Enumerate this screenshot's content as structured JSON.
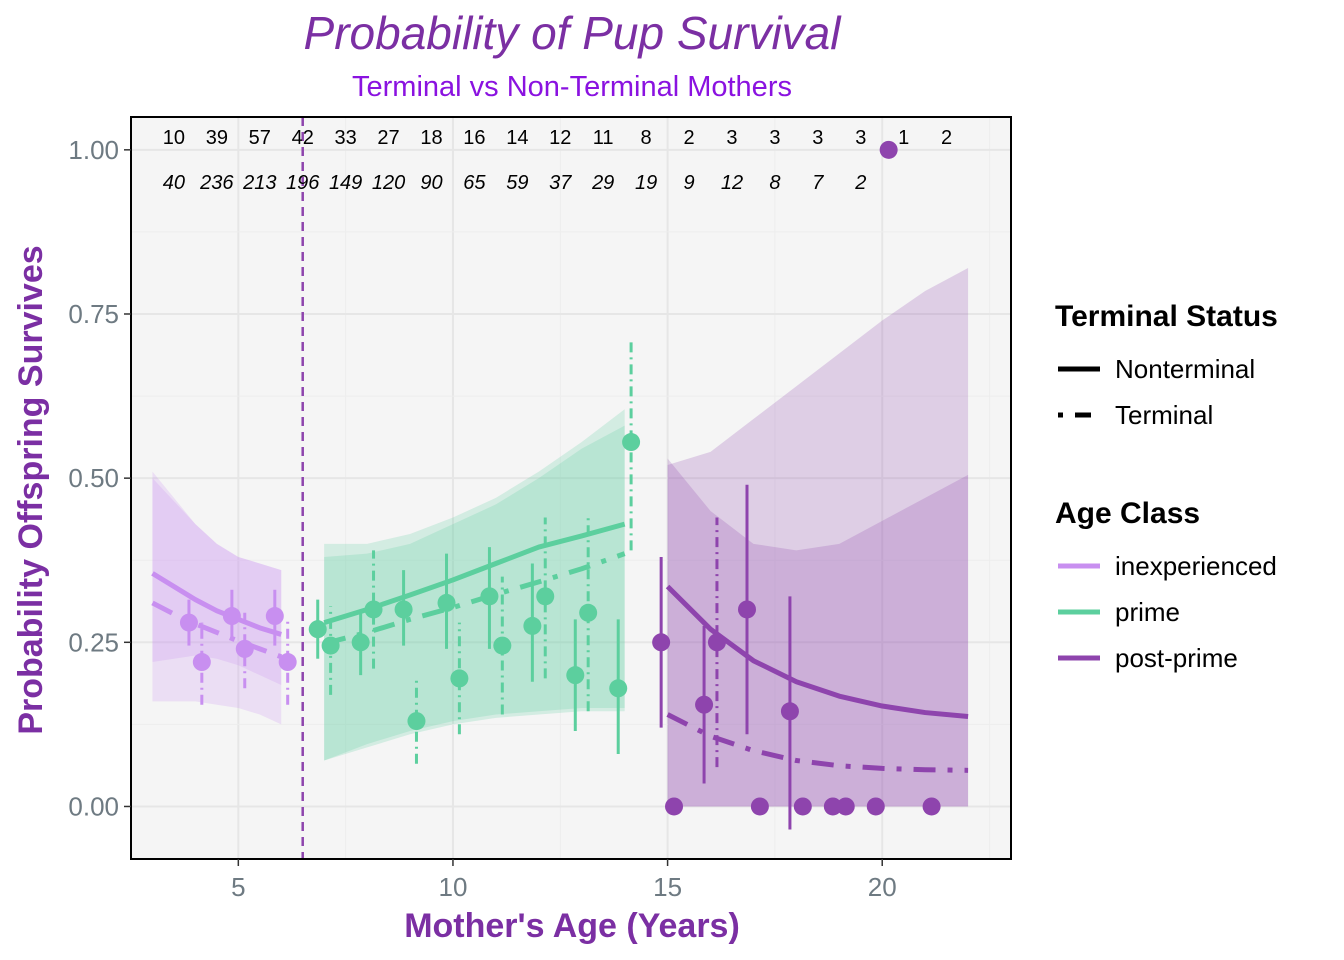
{
  "chart_data": {
    "type": "scatter",
    "title": "Probability of Pup Survival",
    "subtitle": "Terminal vs Non-Terminal Mothers",
    "xlabel": "Mother's Age (Years)",
    "ylabel": "Probability Offspring Survives",
    "xlim": [
      2.5,
      23.0
    ],
    "ylim": [
      -0.08,
      1.05
    ],
    "xticks": [
      5,
      10,
      15,
      20
    ],
    "xtick_labels": [
      "5",
      "10",
      "15",
      "20"
    ],
    "yticks": [
      0.0,
      0.25,
      0.5,
      0.75,
      1.0
    ],
    "ytick_labels": [
      "0.00",
      "0.25",
      "0.50",
      "0.75",
      "1.00"
    ],
    "grid": true,
    "vline": {
      "x": 6.5,
      "color": "#8e44ad",
      "style": "dashed"
    },
    "colors": {
      "inexperienced": "#c88ff0",
      "prime": "#5ccf9e",
      "post-prime": "#8e44ad"
    },
    "counts": {
      "x": [
        3.5,
        4.5,
        5.5,
        6.5,
        7.5,
        8.5,
        9.5,
        10.5,
        11.5,
        12.5,
        13.5,
        14.5,
        15.5,
        16.5,
        17.5,
        18.5,
        19.5,
        20.5,
        21.5
      ],
      "nonterminal": [
        "10",
        "39",
        "57",
        "42",
        "33",
        "27",
        "18",
        "16",
        "14",
        "12",
        "11",
        "8",
        "2",
        "3",
        "3",
        "3",
        "3",
        "1",
        "2"
      ],
      "terminal": [
        "40",
        "236",
        "213",
        "196",
        "149",
        "120",
        "90",
        "65",
        "59",
        "37",
        "29",
        "19",
        "9",
        "12",
        "8",
        "7",
        "2",
        "",
        ""
      ]
    },
    "series": [
      {
        "class": "inexperienced",
        "status": "Nonterminal",
        "points": [
          {
            "x": 3.85,
            "y": 0.28,
            "lo": 0.245,
            "hi": 0.315
          },
          {
            "x": 4.85,
            "y": 0.29,
            "lo": 0.255,
            "hi": 0.33
          },
          {
            "x": 5.85,
            "y": 0.29,
            "lo": 0.245,
            "hi": 0.33
          }
        ],
        "fit": {
          "x": [
            3,
            3.5,
            4,
            4.5,
            5,
            5.5,
            6
          ],
          "y": [
            0.355,
            0.335,
            0.315,
            0.298,
            0.285,
            0.272,
            0.262
          ]
        },
        "band": {
          "x": [
            3,
            3.5,
            4,
            4.5,
            5,
            5.5,
            6
          ],
          "lo": [
            0.22,
            0.225,
            0.23,
            0.225,
            0.215,
            0.2,
            0.185
          ],
          "hi": [
            0.5,
            0.465,
            0.43,
            0.4,
            0.38,
            0.37,
            0.36
          ]
        }
      },
      {
        "class": "inexperienced",
        "status": "Terminal",
        "points": [
          {
            "x": 4.15,
            "y": 0.22,
            "lo": 0.155,
            "hi": 0.28
          },
          {
            "x": 5.15,
            "y": 0.24,
            "lo": 0.18,
            "hi": 0.295
          },
          {
            "x": 6.15,
            "y": 0.22,
            "lo": 0.155,
            "hi": 0.285
          }
        ],
        "fit": {
          "x": [
            3,
            3.5,
            4,
            4.5,
            5,
            5.5,
            6
          ],
          "y": [
            0.31,
            0.293,
            0.278,
            0.265,
            0.252,
            0.24,
            0.228
          ]
        },
        "band": {
          "x": [
            3,
            3.5,
            4,
            4.5,
            5,
            5.5,
            6
          ],
          "lo": [
            0.16,
            0.16,
            0.16,
            0.155,
            0.15,
            0.14,
            0.125
          ],
          "hi": [
            0.51,
            0.47,
            0.43,
            0.4,
            0.38,
            0.37,
            0.36
          ]
        }
      },
      {
        "class": "prime",
        "status": "Nonterminal",
        "points": [
          {
            "x": 6.85,
            "y": 0.27,
            "lo": 0.225,
            "hi": 0.315
          },
          {
            "x": 7.85,
            "y": 0.25,
            "lo": 0.2,
            "hi": 0.3
          },
          {
            "x": 8.85,
            "y": 0.3,
            "lo": 0.245,
            "hi": 0.36
          },
          {
            "x": 9.85,
            "y": 0.31,
            "lo": 0.24,
            "hi": 0.385
          },
          {
            "x": 10.85,
            "y": 0.32,
            "lo": 0.24,
            "hi": 0.395
          },
          {
            "x": 11.85,
            "y": 0.275,
            "lo": 0.19,
            "hi": 0.37
          },
          {
            "x": 12.85,
            "y": 0.2,
            "lo": 0.115,
            "hi": 0.285
          },
          {
            "x": 13.85,
            "y": 0.18,
            "lo": 0.08,
            "hi": 0.285
          }
        ],
        "fit": {
          "x": [
            7,
            8,
            9,
            10,
            11,
            12,
            13,
            14
          ],
          "y": [
            0.28,
            0.3,
            0.322,
            0.345,
            0.37,
            0.395,
            0.412,
            0.43
          ]
        },
        "band": {
          "x": [
            7,
            8,
            9,
            10,
            11,
            12,
            13,
            14
          ],
          "lo": [
            0.07,
            0.095,
            0.115,
            0.13,
            0.14,
            0.145,
            0.15,
            0.15
          ],
          "hi": [
            0.38,
            0.385,
            0.4,
            0.43,
            0.46,
            0.5,
            0.545,
            0.58
          ]
        }
      },
      {
        "class": "prime",
        "status": "Terminal",
        "points": [
          {
            "x": 7.15,
            "y": 0.245,
            "lo": 0.17,
            "hi": 0.305
          },
          {
            "x": 8.15,
            "y": 0.3,
            "lo": 0.21,
            "hi": 0.39
          },
          {
            "x": 9.15,
            "y": 0.13,
            "lo": 0.065,
            "hi": 0.195
          },
          {
            "x": 10.15,
            "y": 0.195,
            "lo": 0.11,
            "hi": 0.28
          },
          {
            "x": 11.15,
            "y": 0.245,
            "lo": 0.14,
            "hi": 0.35
          },
          {
            "x": 12.15,
            "y": 0.32,
            "lo": 0.195,
            "hi": 0.44
          },
          {
            "x": 13.15,
            "y": 0.295,
            "lo": 0.145,
            "hi": 0.44
          },
          {
            "x": 14.15,
            "y": 0.555,
            "lo": 0.39,
            "hi": 0.71
          }
        ],
        "fit": {
          "x": [
            7,
            8,
            9,
            10,
            11,
            12,
            13,
            14
          ],
          "y": [
            0.248,
            0.265,
            0.285,
            0.303,
            0.323,
            0.342,
            0.362,
            0.385
          ]
        },
        "band": {
          "x": [
            7,
            8,
            9,
            10,
            11,
            12,
            13,
            14
          ],
          "lo": [
            0.07,
            0.09,
            0.11,
            0.125,
            0.135,
            0.14,
            0.145,
            0.145
          ],
          "hi": [
            0.4,
            0.4,
            0.415,
            0.44,
            0.47,
            0.51,
            0.555,
            0.605
          ]
        }
      },
      {
        "class": "post-prime",
        "status": "Nonterminal",
        "points": [
          {
            "x": 14.85,
            "y": 0.25,
            "lo": 0.12,
            "hi": 0.38
          },
          {
            "x": 15.85,
            "y": 0.155,
            "lo": 0.035,
            "hi": 0.275
          },
          {
            "x": 16.85,
            "y": 0.3,
            "lo": 0.11,
            "hi": 0.49
          },
          {
            "x": 17.85,
            "y": 0.145,
            "lo": -0.035,
            "hi": 0.32
          },
          {
            "x": 15.15,
            "y": 0.0
          },
          {
            "x": 17.15,
            "y": 0.0
          },
          {
            "x": 18.15,
            "y": 0.0
          },
          {
            "x": 18.85,
            "y": 0.0
          },
          {
            "x": 19.85,
            "y": 0.0
          },
          {
            "x": 21.15,
            "y": 0.0
          },
          {
            "x": 20.15,
            "y": 1.0
          }
        ],
        "fit": {
          "x": [
            15,
            16,
            17,
            18,
            19,
            20,
            21,
            22
          ],
          "y": [
            0.335,
            0.27,
            0.222,
            0.19,
            0.168,
            0.153,
            0.143,
            0.137
          ]
        },
        "band": {
          "x": [
            15,
            16,
            17,
            18,
            19,
            20,
            21,
            22
          ],
          "lo": [
            0.0,
            0.0,
            0.0,
            0.0,
            0.0,
            0.0,
            0.0,
            0.0
          ],
          "hi": [
            0.52,
            0.54,
            0.59,
            0.64,
            0.69,
            0.74,
            0.785,
            0.82
          ]
        }
      },
      {
        "class": "post-prime",
        "status": "Terminal",
        "points": [
          {
            "x": 16.15,
            "y": 0.25,
            "lo": 0.06,
            "hi": 0.44
          },
          {
            "x": 19.15,
            "y": 0.0
          }
        ],
        "fit": {
          "x": [
            15,
            16,
            17,
            18,
            19,
            20,
            21,
            22
          ],
          "y": [
            0.14,
            0.107,
            0.085,
            0.07,
            0.062,
            0.058,
            0.056,
            0.055
          ]
        },
        "band": {
          "x": [
            15,
            16,
            17,
            18,
            19,
            20,
            21,
            22
          ],
          "lo": [
            0.0,
            0.0,
            0.0,
            0.0,
            0.0,
            0.0,
            0.0,
            0.0
          ],
          "hi": [
            0.53,
            0.45,
            0.4,
            0.39,
            0.4,
            0.435,
            0.47,
            0.505
          ]
        }
      }
    ],
    "legend": {
      "placement": "right",
      "status_title": "Terminal Status",
      "status_items": [
        "Nonterminal",
        "Terminal"
      ],
      "class_title": "Age Class",
      "class_items": [
        "inexperienced",
        "prime",
        "post-prime"
      ]
    }
  }
}
